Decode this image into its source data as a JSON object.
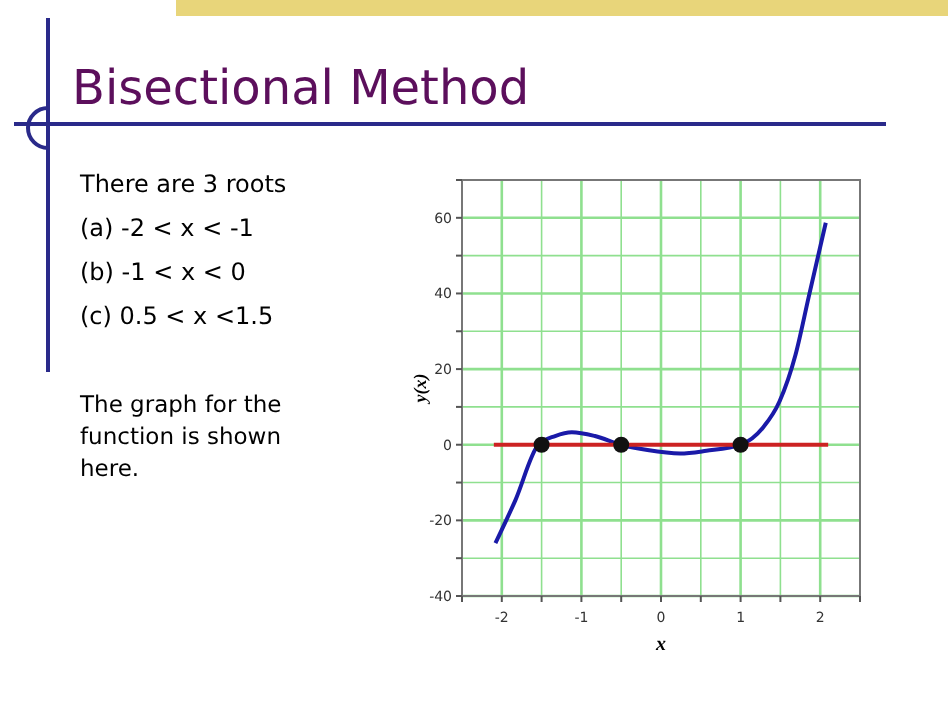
{
  "chart_data": {
    "type": "line",
    "title": "Bisectional Method",
    "annotations": [
      "There are 3 roots",
      "(a) -2  < x < -1",
      "(b) -1  < x < 0",
      "(c) 0.5 < x <1.5",
      "The graph for the function is shown here."
    ],
    "xlabel": "x",
    "ylabel": "y(x)",
    "series": [
      {
        "color": "#1a1aa8",
        "x": [
          -2.08,
          -1.83,
          -1.54,
          -1.33,
          -1.12,
          -0.83,
          -0.5,
          -0.17,
          0.24,
          0.57,
          1.0,
          1.28,
          1.49,
          1.69,
          1.86,
          2.07
        ],
        "values": [
          -26,
          -14.7,
          0,
          2.3,
          3.3,
          2.3,
          0,
          -1.4,
          -2.3,
          -1.6,
          0,
          4.5,
          11.5,
          23.8,
          39.5,
          58.7
        ]
      },
      {
        "color": "#cc2222",
        "x": [
          -2.1,
          2.1
        ],
        "values": [
          0,
          0
        ]
      },
      {
        "type": "scatter",
        "color": "#111111",
        "marker": "circle",
        "x": [
          -1.5,
          -0.5,
          1.0
        ],
        "values": [
          0,
          0,
          0
        ]
      }
    ],
    "xlim": [
      -2.5,
      2.5
    ],
    "ylim": [
      -40,
      70
    ],
    "xticks": [
      {
        "value": -2.5,
        "label": null
      },
      -2,
      {
        "value": -1.5,
        "label": null
      },
      -1,
      {
        "value": -0.5,
        "label": null
      },
      0,
      {
        "value": 0.5,
        "label": null
      },
      1,
      {
        "value": 1.5,
        "label": null
      },
      2,
      {
        "value": 2.5,
        "label": null
      }
    ],
    "yticks": [
      -40,
      {
        "value": -30,
        "label": null
      },
      -20,
      {
        "value": -10,
        "label": null
      },
      0,
      {
        "value": 10,
        "label": null
      },
      20,
      {
        "value": 30,
        "label": null
      },
      40,
      {
        "value": 50,
        "label": null
      },
      60,
      {
        "value": 70,
        "label": null
      }
    ],
    "grid": true,
    "line_style": "solid",
    "marker": "none"
  }
}
